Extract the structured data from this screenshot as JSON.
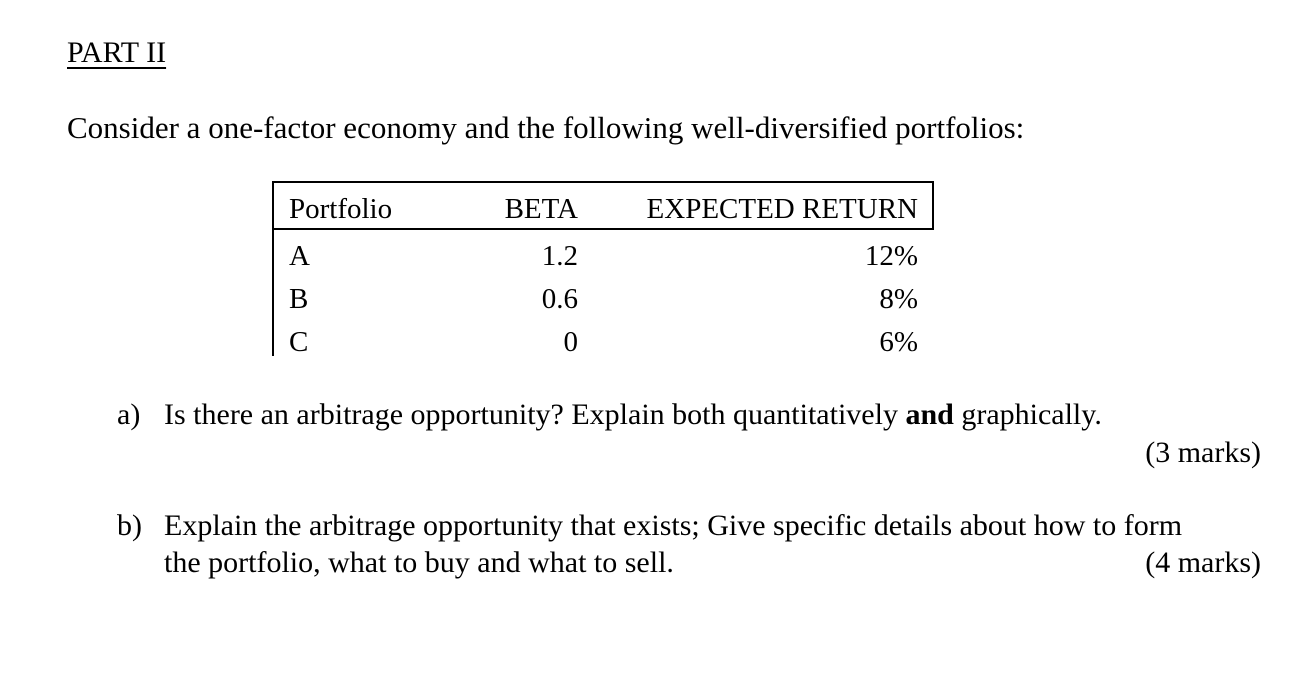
{
  "heading": "PART II",
  "intro": "Consider a one-factor economy and the following well-diversified portfolios:",
  "table": {
    "headers": [
      "Portfolio",
      "BETA",
      "EXPECTED RETURN"
    ],
    "rows": [
      {
        "portfolio": "A",
        "beta": "1.2",
        "expected_return": "12%"
      },
      {
        "portfolio": "B",
        "beta": "0.6",
        "expected_return": "8%"
      },
      {
        "portfolio": "C",
        "beta": "0",
        "expected_return": "6%"
      }
    ]
  },
  "questions": [
    {
      "label": "a)",
      "text_before_bold": "Is there an arbitrage opportunity? Explain both quantitatively ",
      "bold": "and",
      "text_after_bold": " graphically.",
      "marks": "(3 marks)"
    },
    {
      "label": "b)",
      "line1": "Explain the arbitrage opportunity that exists; Give specific details about how to form",
      "line2": "the portfolio, what to buy and what to sell.",
      "marks": "(4 marks)"
    }
  ]
}
